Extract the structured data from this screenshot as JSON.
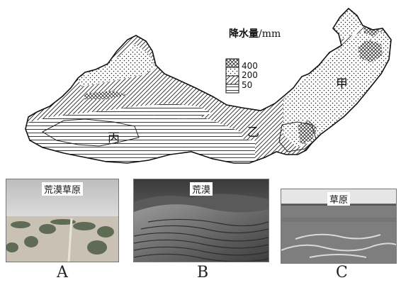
{
  "legend": {
    "title_bold": "降水量",
    "title_unit": "/mm",
    "values": [
      "400",
      "200",
      "50"
    ]
  },
  "regions": {
    "jia": "甲",
    "yi": "乙",
    "bing": "丙"
  },
  "photos": [
    {
      "caption": "荒漠草原",
      "letter": "A"
    },
    {
      "caption": "荒漠",
      "letter": "B"
    },
    {
      "caption": "草原",
      "letter": "C"
    }
  ]
}
